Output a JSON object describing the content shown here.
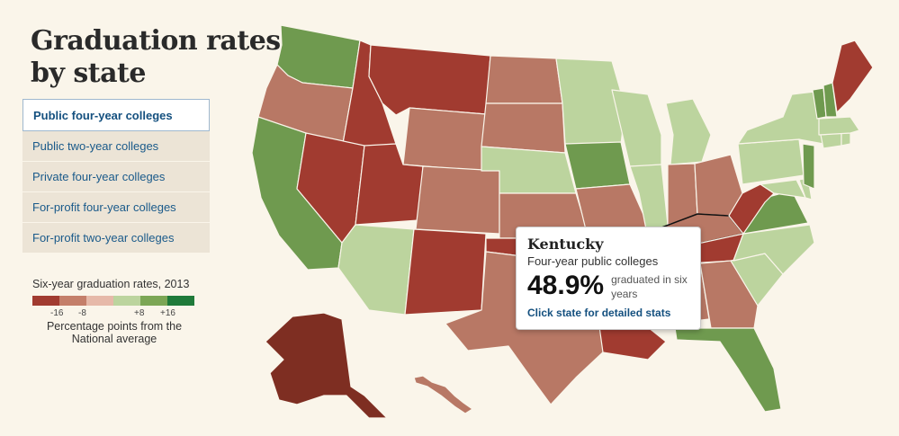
{
  "title_line1": "Graduation rates",
  "title_line2": "by state",
  "tabs": [
    {
      "label": "Public four-year colleges",
      "active": true
    },
    {
      "label": "Public two-year colleges",
      "active": false
    },
    {
      "label": "Private four-year colleges",
      "active": false
    },
    {
      "label": "For-profit four-year colleges",
      "active": false
    },
    {
      "label": "For-profit two-year colleges",
      "active": false
    }
  ],
  "legend": {
    "title": "Six-year graduation rates, 2013",
    "colors": [
      "#a13b30",
      "#c47f6a",
      "#e6b9a9",
      "#bcd49e",
      "#7ca655",
      "#1f7a3a"
    ],
    "tick_labels": [
      "-16",
      "-8",
      "+8",
      "+16"
    ],
    "note_line1": "Percentage points from the",
    "note_line2": "National average"
  },
  "tooltip": {
    "state": "Kentucky",
    "category": "Four-year public colleges",
    "value": "48.9%",
    "note_line1": "graduated in six",
    "note_line2": "years",
    "link": "Click state for detailed stats"
  },
  "colors": {
    "dark_red": "#a13b30",
    "muted_red": "#b87865",
    "light_green": "#bcd49e",
    "mid_green": "#6f9a4f",
    "alaska": "#7e2e22",
    "border": "#faf5ea"
  },
  "states": [
    {
      "name": "Washington",
      "cls": "mid_green"
    },
    {
      "name": "Oregon",
      "cls": "muted_red"
    },
    {
      "name": "California",
      "cls": "mid_green"
    },
    {
      "name": "Idaho",
      "cls": "dark_red"
    },
    {
      "name": "Nevada",
      "cls": "dark_red"
    },
    {
      "name": "Montana",
      "cls": "dark_red"
    },
    {
      "name": "Wyoming",
      "cls": "muted_red"
    },
    {
      "name": "Utah",
      "cls": "dark_red"
    },
    {
      "name": "Arizona",
      "cls": "light_green"
    },
    {
      "name": "Colorado",
      "cls": "muted_red"
    },
    {
      "name": "New Mexico",
      "cls": "dark_red"
    },
    {
      "name": "North Dakota",
      "cls": "muted_red"
    },
    {
      "name": "South Dakota",
      "cls": "muted_red"
    },
    {
      "name": "Nebraska",
      "cls": "light_green"
    },
    {
      "name": "Kansas",
      "cls": "muted_red"
    },
    {
      "name": "Oklahoma",
      "cls": "dark_red"
    },
    {
      "name": "Texas",
      "cls": "muted_red"
    },
    {
      "name": "Minnesota",
      "cls": "light_green"
    },
    {
      "name": "Iowa",
      "cls": "mid_green"
    },
    {
      "name": "Missouri",
      "cls": "muted_red"
    },
    {
      "name": "Arkansas",
      "cls": "muted_red"
    },
    {
      "name": "Louisiana",
      "cls": "dark_red"
    },
    {
      "name": "Wisconsin",
      "cls": "light_green"
    },
    {
      "name": "Illinois",
      "cls": "light_green"
    },
    {
      "name": "Michigan",
      "cls": "light_green"
    },
    {
      "name": "Indiana",
      "cls": "muted_red"
    },
    {
      "name": "Ohio",
      "cls": "muted_red"
    },
    {
      "name": "Kentucky",
      "cls": "muted_red"
    },
    {
      "name": "Tennessee",
      "cls": "dark_red"
    },
    {
      "name": "Mississippi",
      "cls": "dark_red"
    },
    {
      "name": "Alabama",
      "cls": "muted_red"
    },
    {
      "name": "Georgia",
      "cls": "muted_red"
    },
    {
      "name": "Florida",
      "cls": "mid_green"
    },
    {
      "name": "South Carolina",
      "cls": "light_green"
    },
    {
      "name": "North Carolina",
      "cls": "light_green"
    },
    {
      "name": "Virginia",
      "cls": "mid_green"
    },
    {
      "name": "West Virginia",
      "cls": "dark_red"
    },
    {
      "name": "Maryland",
      "cls": "light_green"
    },
    {
      "name": "Delaware",
      "cls": "light_green"
    },
    {
      "name": "Pennsylvania",
      "cls": "light_green"
    },
    {
      "name": "New Jersey",
      "cls": "mid_green"
    },
    {
      "name": "New York",
      "cls": "light_green"
    },
    {
      "name": "Connecticut",
      "cls": "light_green"
    },
    {
      "name": "Rhode Island",
      "cls": "light_green"
    },
    {
      "name": "Massachusetts",
      "cls": "light_green"
    },
    {
      "name": "Vermont",
      "cls": "mid_green"
    },
    {
      "name": "New Hampshire",
      "cls": "mid_green"
    },
    {
      "name": "Maine",
      "cls": "dark_red"
    },
    {
      "name": "Alaska",
      "cls": "alaska"
    },
    {
      "name": "Hawaii",
      "cls": "muted_red"
    }
  ]
}
